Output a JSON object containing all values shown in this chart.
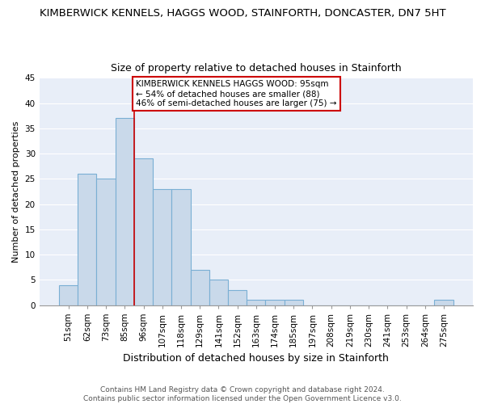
{
  "title": "KIMBERWICK KENNELS, HAGGS WOOD, STAINFORTH, DONCASTER, DN7 5HT",
  "subtitle": "Size of property relative to detached houses in Stainforth",
  "xlabel": "Distribution of detached houses by size in Stainforth",
  "ylabel": "Number of detached properties",
  "bar_color": "#c9d9ea",
  "bar_edge_color": "#7aafd4",
  "categories": [
    "51sqm",
    "62sqm",
    "73sqm",
    "85sqm",
    "96sqm",
    "107sqm",
    "118sqm",
    "129sqm",
    "141sqm",
    "152sqm",
    "163sqm",
    "174sqm",
    "185sqm",
    "197sqm",
    "208sqm",
    "219sqm",
    "230sqm",
    "241sqm",
    "253sqm",
    "264sqm",
    "275sqm"
  ],
  "values": [
    4,
    26,
    25,
    37,
    29,
    23,
    23,
    7,
    5,
    3,
    1,
    1,
    1,
    0,
    0,
    0,
    0,
    0,
    0,
    0,
    1
  ],
  "ylim": [
    0,
    45
  ],
  "yticks": [
    0,
    5,
    10,
    15,
    20,
    25,
    30,
    35,
    40,
    45
  ],
  "vline_index": 4,
  "vline_color": "#cc0000",
  "annotation_text": "KIMBERWICK KENNELS HAGGS WOOD: 95sqm\n← 54% of detached houses are smaller (88)\n46% of semi-detached houses are larger (75) →",
  "annotation_box_color": "#ffffff",
  "annotation_box_edge": "#cc0000",
  "footer_text": "Contains HM Land Registry data © Crown copyright and database right 2024.\nContains public sector information licensed under the Open Government Licence v3.0.",
  "fig_bg_color": "#ffffff",
  "ax_bg_color": "#e8eef8",
  "grid_color": "#ffffff",
  "title_fontsize": 9.5,
  "subtitle_fontsize": 9,
  "xlabel_fontsize": 9,
  "ylabel_fontsize": 8,
  "tick_fontsize": 7.5,
  "footer_fontsize": 6.5,
  "annot_fontsize": 7.5
}
